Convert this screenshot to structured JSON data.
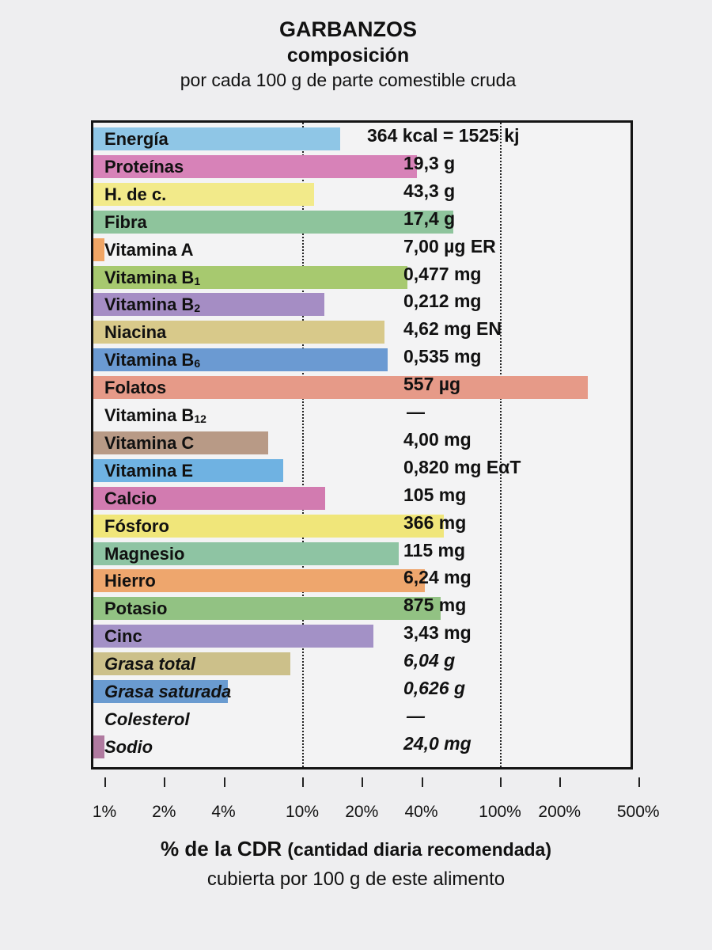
{
  "header": {
    "title": "GARBANZOS",
    "subtitle": "composición",
    "basis": "por cada 100 g de parte comestible cruda"
  },
  "chart_data": {
    "type": "bar",
    "orientation": "horizontal",
    "scale": "log",
    "xlim": [
      1,
      500
    ],
    "grid": "dotted lines at 10% and 100%",
    "ticks": [
      "1%",
      "2%",
      "4%",
      "10%",
      "20%",
      "40%",
      "100%",
      "200%",
      "500%"
    ],
    "tick_values": [
      1,
      2,
      4,
      10,
      20,
      40,
      100,
      200,
      500
    ],
    "xlabel_main": "% de la CDR",
    "xlabel_note": "(cantidad diaria recomendada)",
    "xlabel_line2": "cubierta por 100 g de este alimento",
    "rows": [
      {
        "label": "Energía",
        "sub": "",
        "value": "364 kcal = 1525 kj",
        "pct": 15.5,
        "color": "#8fc6e6",
        "italic": false
      },
      {
        "label": "Proteínas",
        "sub": "",
        "value": "19,3 g",
        "pct": 38,
        "color": "#d782b8",
        "italic": false
      },
      {
        "label": "H. de c.",
        "sub": "",
        "value": "43,3 g",
        "pct": 11.5,
        "color": "#f2ea8a",
        "italic": false
      },
      {
        "label": "Fibra",
        "sub": "",
        "value": "17,4 g",
        "pct": 58,
        "color": "#8ec49c",
        "italic": false
      },
      {
        "label": "Vitamina A",
        "sub": "",
        "value": "7,00 µg ER",
        "pct": 1,
        "color": "#f0a565",
        "italic": false
      },
      {
        "label": "Vitamina B",
        "sub": "1",
        "value": "0,477 mg",
        "pct": 34,
        "color": "#a7c96f",
        "italic": false
      },
      {
        "label": "Vitamina B",
        "sub": "2",
        "value": "0,212 mg",
        "pct": 13,
        "color": "#a58dc4",
        "italic": false
      },
      {
        "label": "Niacina",
        "sub": "",
        "value": "4,62 mg EN",
        "pct": 26,
        "color": "#d8c98a",
        "italic": false
      },
      {
        "label": "Vitamina B",
        "sub": "6",
        "value": "0,535 mg",
        "pct": 27,
        "color": "#6b9ad2",
        "italic": false
      },
      {
        "label": "Folatos",
        "sub": "",
        "value": "557 µg",
        "pct": 278,
        "color": "#e69a88",
        "italic": false
      },
      {
        "label": "Vitamina B",
        "sub": "12",
        "value": "—",
        "pct": 0,
        "color": "#dddddd",
        "italic": false
      },
      {
        "label": "Vitamina C",
        "sub": "",
        "value": "4,00 mg",
        "pct": 6.7,
        "color": "#b89a86",
        "italic": false
      },
      {
        "label": "Vitamina E",
        "sub": "",
        "value": "0,820 mg EαT",
        "pct": 8,
        "color": "#6fb2e2",
        "italic": false
      },
      {
        "label": "Calcio",
        "sub": "",
        "value": "105 mg",
        "pct": 13.1,
        "color": "#d27bb0",
        "italic": false
      },
      {
        "label": "Fósforo",
        "sub": "",
        "value": "366 mg",
        "pct": 52,
        "color": "#f0e67a",
        "italic": false
      },
      {
        "label": "Magnesio",
        "sub": "",
        "value": "115 mg",
        "pct": 30.7,
        "color": "#8ec4a3",
        "italic": false
      },
      {
        "label": "Hierro",
        "sub": "",
        "value": "6,24 mg",
        "pct": 41.6,
        "color": "#eea66d",
        "italic": false
      },
      {
        "label": "Potasio",
        "sub": "",
        "value": "875 mg",
        "pct": 50,
        "color": "#92c283",
        "italic": false
      },
      {
        "label": "Cinc",
        "sub": "",
        "value": "3,43 mg",
        "pct": 22.9,
        "color": "#a391c6",
        "italic": false
      },
      {
        "label": "Grasa total",
        "sub": "",
        "value": "6,04 g",
        "pct": 8.7,
        "color": "#ccc08a",
        "italic": true
      },
      {
        "label": "Grasa saturada",
        "sub": "",
        "value": "0,626 g",
        "pct": 4.2,
        "color": "#6a9bd0",
        "italic": true
      },
      {
        "label": "Colesterol",
        "sub": "",
        "value": "—",
        "pct": 0,
        "color": "#dddddd",
        "italic": true
      },
      {
        "label": "Sodio",
        "sub": "",
        "value": "24,0 mg",
        "pct": 1,
        "color": "#b07aa0",
        "italic": true
      }
    ]
  }
}
